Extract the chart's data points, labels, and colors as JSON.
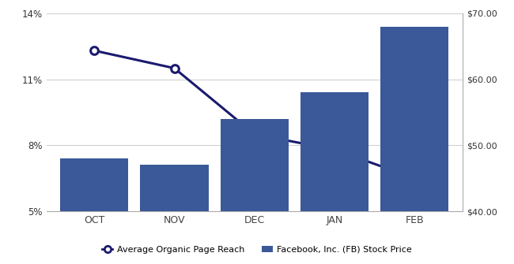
{
  "categories": [
    "OCT",
    "NOV",
    "DEC",
    "JAN",
    "FEB"
  ],
  "organic_reach": [
    12.3,
    11.5,
    8.5,
    7.8,
    6.5
  ],
  "stock_price": [
    48.0,
    47.0,
    54.0,
    58.0,
    68.0
  ],
  "bar_color": "#3B5998",
  "line_color": "#1a1a6e",
  "left_ylim": [
    5,
    14
  ],
  "left_yticks": [
    5,
    8,
    11,
    14
  ],
  "right_ylim": [
    40,
    70
  ],
  "right_yticks": [
    40,
    50,
    60,
    70
  ],
  "legend_line_label": "Average Organic Page Reach",
  "legend_bar_label": "Facebook, Inc. (FB) Stock Price",
  "background_color": "#ffffff",
  "fig_background": "#ffffff"
}
